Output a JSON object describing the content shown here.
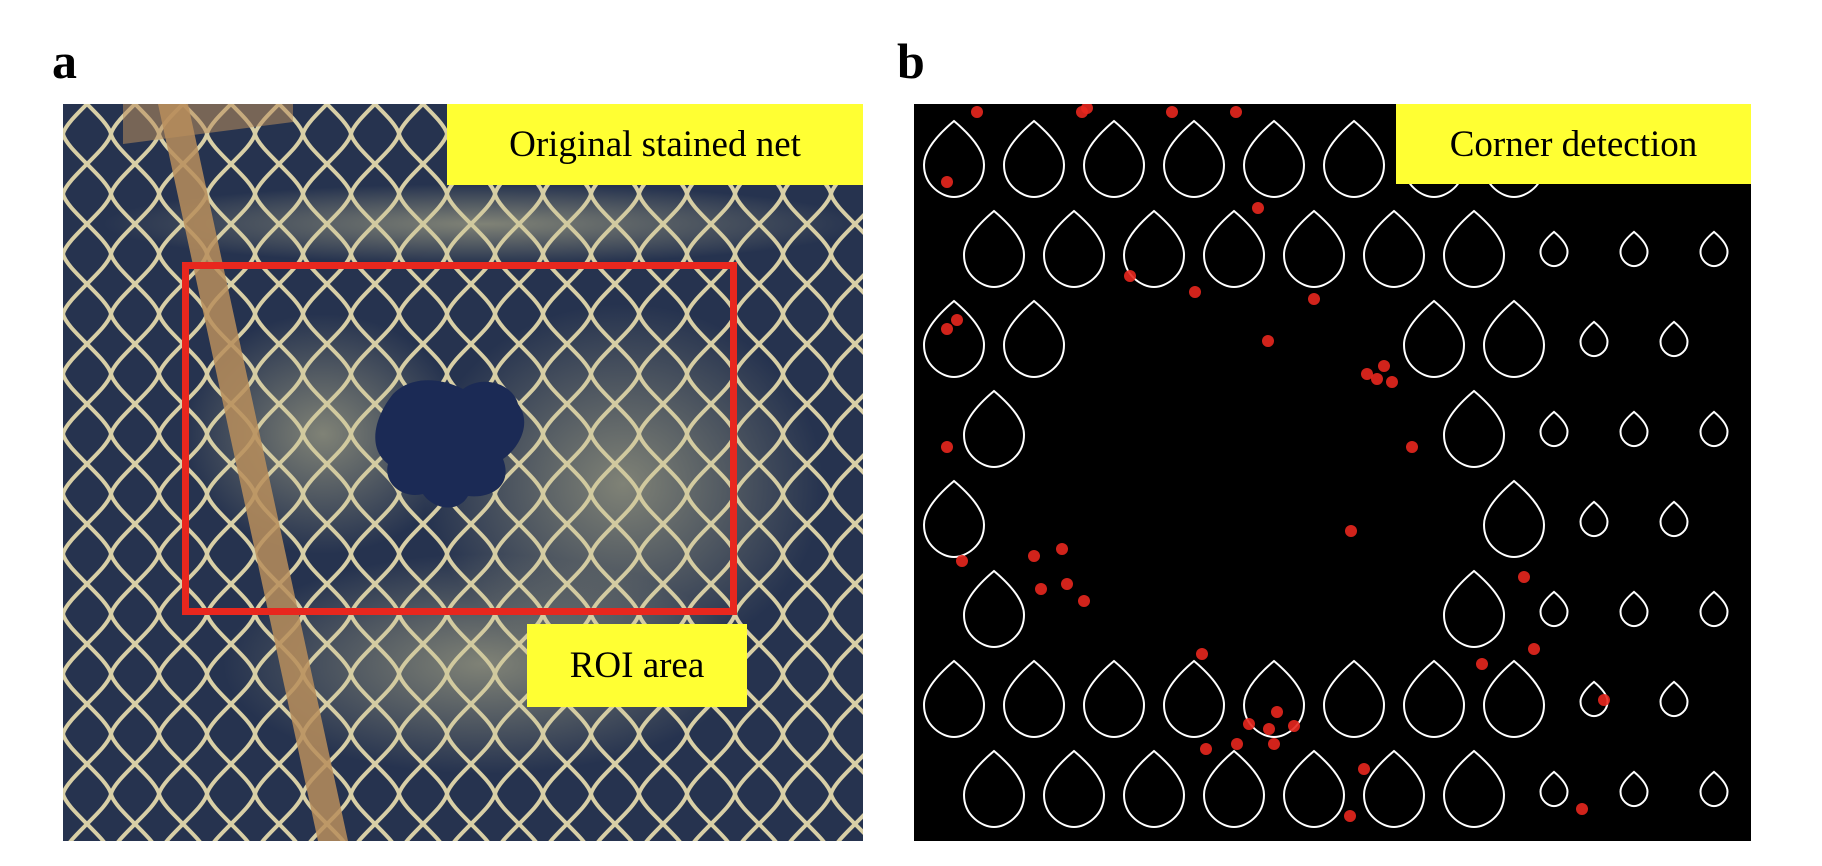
{
  "panels": {
    "a": {
      "letter": "a",
      "image": "photo-stained-net",
      "label": "Original stained net",
      "roi_label": "ROI area",
      "colors": {
        "water": "#24304a",
        "net_strands": "#d8cfa6",
        "fouling": "#bdb88c",
        "roi_box": "#e8271e"
      }
    },
    "b": {
      "letter": "b",
      "image": "corner-detection-contours",
      "label": "Corner detection",
      "colors": {
        "background": "#000000",
        "contours": "#ffffff",
        "corners": "#e8271e"
      }
    }
  },
  "label_background": "#ffff33"
}
